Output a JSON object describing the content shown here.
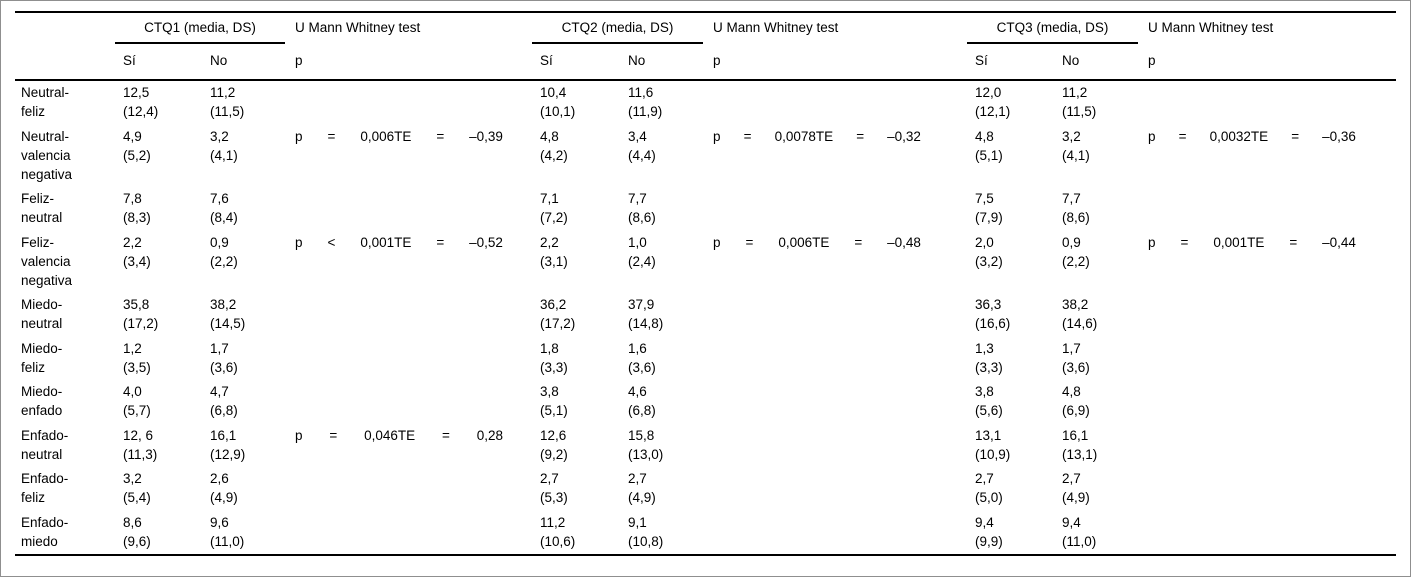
{
  "colors": {
    "rule": "#000000",
    "frame_border": "#8f8f8f",
    "background": "#ffffff",
    "text": "#000000"
  },
  "table": {
    "groups": [
      {
        "title": "CTQ1 (media, DS)",
        "test_title": "U Mann Whitney test",
        "si": "Sí",
        "no": "No",
        "p": "p"
      },
      {
        "title": "CTQ2 (media, DS)",
        "test_title": "U Mann Whitney test",
        "si": "Sí",
        "no": "No",
        "p": "p"
      },
      {
        "title": "CTQ3 (media, DS)",
        "test_title": "U Mann Whitney test",
        "si": "Sí",
        "no": "No",
        "p": "p"
      }
    ],
    "rows": [
      {
        "label_lines": [
          "Neutral-",
          "feliz"
        ],
        "ctq1": {
          "si": [
            "12,5",
            "(12,4)"
          ],
          "no": [
            "11,2",
            "(11,5)"
          ],
          "p": []
        },
        "ctq2": {
          "si": [
            "10,4",
            "(10,1)"
          ],
          "no": [
            "11,6",
            "(11,9)"
          ],
          "p": []
        },
        "ctq3": {
          "si": [
            "12,0",
            "(12,1)"
          ],
          "no": [
            "11,2",
            "(11,5)"
          ],
          "p": []
        }
      },
      {
        "label_lines": [
          "Neutral-",
          "valencia",
          "negativa"
        ],
        "ctq1": {
          "si": [
            "4,9",
            "(5,2)"
          ],
          "no": [
            "3,2",
            "(4,1)"
          ],
          "p": [
            "p",
            "=",
            "0,006TE",
            "=",
            "–0,39"
          ]
        },
        "ctq2": {
          "si": [
            "4,8",
            "(4,2)"
          ],
          "no": [
            "3,4",
            "(4,4)"
          ],
          "p": [
            "p",
            "=",
            "0,0078TE",
            "=",
            "–0,32"
          ]
        },
        "ctq3": {
          "si": [
            "4,8",
            "(5,1)"
          ],
          "no": [
            "3,2",
            "(4,1)"
          ],
          "p": [
            "p",
            "=",
            "0,0032TE",
            "=",
            "–0,36"
          ]
        }
      },
      {
        "label_lines": [
          "Feliz-",
          "neutral"
        ],
        "ctq1": {
          "si": [
            "7,8",
            "(8,3)"
          ],
          "no": [
            "7,6",
            "(8,4)"
          ],
          "p": []
        },
        "ctq2": {
          "si": [
            "7,1",
            "(7,2)"
          ],
          "no": [
            "7,7",
            "(8,6)"
          ],
          "p": []
        },
        "ctq3": {
          "si": [
            "7,5",
            "(7,9)"
          ],
          "no": [
            "7,7",
            "(8,6)"
          ],
          "p": []
        }
      },
      {
        "label_lines": [
          "Feliz-",
          "valencia",
          "negativa"
        ],
        "ctq1": {
          "si": [
            "2,2",
            "(3,4)"
          ],
          "no": [
            "0,9",
            "(2,2)"
          ],
          "p": [
            "p",
            "<",
            "0,001TE",
            "=",
            "–0,52"
          ]
        },
        "ctq2": {
          "si": [
            "2,2",
            "(3,1)"
          ],
          "no": [
            "1,0",
            "(2,4)"
          ],
          "p": [
            "p",
            "=",
            "0,006TE",
            "=",
            "–0,48"
          ]
        },
        "ctq3": {
          "si": [
            "2,0",
            "(3,2)"
          ],
          "no": [
            "0,9",
            "(2,2)"
          ],
          "p": [
            "p",
            "=",
            "0,001TE",
            "=",
            "–0,44"
          ]
        }
      },
      {
        "label_lines": [
          "Miedo-",
          "neutral"
        ],
        "ctq1": {
          "si": [
            "35,8",
            "(17,2)"
          ],
          "no": [
            "38,2",
            "(14,5)"
          ],
          "p": []
        },
        "ctq2": {
          "si": [
            "36,2",
            "(17,2)"
          ],
          "no": [
            "37,9",
            "(14,8)"
          ],
          "p": []
        },
        "ctq3": {
          "si": [
            "36,3",
            "(16,6)"
          ],
          "no": [
            "38,2",
            "(14,6)"
          ],
          "p": []
        }
      },
      {
        "label_lines": [
          "Miedo-",
          "feliz"
        ],
        "ctq1": {
          "si": [
            "1,2",
            "(3,5)"
          ],
          "no": [
            "1,7",
            "(3,6)"
          ],
          "p": []
        },
        "ctq2": {
          "si": [
            "1,8",
            "(3,3)"
          ],
          "no": [
            "1,6",
            "(3,6)"
          ],
          "p": []
        },
        "ctq3": {
          "si": [
            "1,3",
            "(3,3)"
          ],
          "no": [
            "1,7",
            "(3,6)"
          ],
          "p": []
        }
      },
      {
        "label_lines": [
          "Miedo-",
          "enfado"
        ],
        "ctq1": {
          "si": [
            "4,0",
            "(5,7)"
          ],
          "no": [
            "4,7",
            "(6,8)"
          ],
          "p": []
        },
        "ctq2": {
          "si": [
            "3,8",
            "(5,1)"
          ],
          "no": [
            "4,6",
            "(6,8)"
          ],
          "p": []
        },
        "ctq3": {
          "si": [
            "3,8",
            "(5,6)"
          ],
          "no": [
            "4,8",
            "(6,9)"
          ],
          "p": []
        }
      },
      {
        "label_lines": [
          "Enfado-",
          "neutral"
        ],
        "ctq1": {
          "si": [
            "12, 6",
            "(11,3)"
          ],
          "no": [
            "16,1",
            "(12,9)"
          ],
          "p": [
            "p",
            "=",
            "0,046TE",
            "=",
            "0,28"
          ]
        },
        "ctq2": {
          "si": [
            "12,6",
            "(9,2)"
          ],
          "no": [
            "15,8",
            "(13,0)"
          ],
          "p": []
        },
        "ctq3": {
          "si": [
            "13,1",
            "(10,9)"
          ],
          "no": [
            "16,1",
            "(13,1)"
          ],
          "p": []
        }
      },
      {
        "label_lines": [
          "Enfado-",
          "feliz"
        ],
        "ctq1": {
          "si": [
            "3,2",
            "(5,4)"
          ],
          "no": [
            "2,6",
            "(4,9)"
          ],
          "p": []
        },
        "ctq2": {
          "si": [
            "2,7",
            "(5,3)"
          ],
          "no": [
            "2,7",
            "(4,9)"
          ],
          "p": []
        },
        "ctq3": {
          "si": [
            "2,7",
            "(5,0)"
          ],
          "no": [
            "2,7",
            "(4,9)"
          ],
          "p": []
        }
      },
      {
        "label_lines": [
          "Enfado-",
          "miedo"
        ],
        "ctq1": {
          "si": [
            "8,6",
            "(9,6)"
          ],
          "no": [
            "9,6",
            "(11,0)"
          ],
          "p": []
        },
        "ctq2": {
          "si": [
            "11,2",
            "(10,6)"
          ],
          "no": [
            "9,1",
            "(10,8)"
          ],
          "p": []
        },
        "ctq3": {
          "si": [
            "9,4",
            "(9,9)"
          ],
          "no": [
            "9,4",
            "(11,0)"
          ],
          "p": []
        }
      }
    ]
  }
}
